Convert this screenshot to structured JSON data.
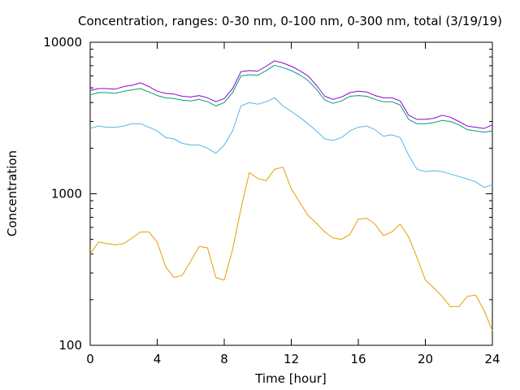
{
  "chart_data": {
    "type": "line",
    "title": "Concentration, ranges: 0-30 nm, 0-100 nm, 0-300 nm, total (3/19/19)",
    "xlabel": "Time [hour]",
    "ylabel": "Concentration",
    "xlim": [
      0,
      24
    ],
    "ylim": [
      100,
      10000
    ],
    "yscale": "log",
    "grid": false,
    "legend": "none",
    "x_ticks": [
      "0",
      "4",
      "8",
      "12",
      "16",
      "20",
      "24"
    ],
    "y_ticks": [
      "100",
      "1000",
      "10000"
    ],
    "x": [
      0,
      0.5,
      1,
      1.5,
      2,
      2.5,
      3,
      3.5,
      4,
      4.5,
      5,
      5.5,
      6,
      6.5,
      7,
      7.5,
      8,
      8.5,
      9,
      9.5,
      10,
      10.5,
      11,
      11.5,
      12,
      12.5,
      13,
      13.5,
      14,
      14.5,
      15,
      15.5,
      16,
      16.5,
      17,
      17.5,
      18,
      18.5,
      19,
      19.5,
      20,
      20.5,
      21,
      21.5,
      22,
      22.5,
      23,
      23.5,
      24
    ],
    "series": [
      {
        "color": "#e69f00",
        "values": [
          400,
          480,
          470,
          460,
          470,
          510,
          560,
          560,
          480,
          330,
          280,
          290,
          360,
          450,
          440,
          280,
          270,
          430,
          800,
          1380,
          1260,
          1220,
          1450,
          1500,
          1080,
          880,
          720,
          640,
          560,
          510,
          500,
          540,
          680,
          690,
          630,
          530,
          560,
          630,
          520,
          380,
          270,
          240,
          210,
          180,
          180,
          210,
          215,
          170,
          125
        ]
      },
      {
        "color": "#56b4e9",
        "values": [
          2700,
          2800,
          2750,
          2750,
          2800,
          2900,
          2900,
          2750,
          2600,
          2350,
          2300,
          2150,
          2100,
          2100,
          2000,
          1850,
          2100,
          2600,
          3800,
          4000,
          3900,
          4050,
          4300,
          3800,
          3500,
          3200,
          2900,
          2600,
          2300,
          2250,
          2350,
          2600,
          2750,
          2800,
          2650,
          2400,
          2450,
          2350,
          1800,
          1450,
          1400,
          1420,
          1400,
          1350,
          1300,
          1250,
          1200,
          1100,
          1150
        ]
      },
      {
        "color": "#009e73",
        "values": [
          4500,
          4650,
          4650,
          4600,
          4750,
          4850,
          4950,
          4700,
          4450,
          4300,
          4250,
          4150,
          4100,
          4200,
          4050,
          3800,
          4000,
          4650,
          6000,
          6100,
          6050,
          6500,
          7050,
          6800,
          6500,
          6100,
          5600,
          4900,
          4150,
          3950,
          4100,
          4400,
          4450,
          4400,
          4200,
          4050,
          4050,
          3850,
          3100,
          2900,
          2900,
          2950,
          3050,
          3000,
          2850,
          2650,
          2600,
          2550,
          2600
        ]
      },
      {
        "color": "#9400d3",
        "values": [
          4800,
          4950,
          4950,
          4900,
          5100,
          5200,
          5400,
          5100,
          4750,
          4600,
          4550,
          4400,
          4350,
          4450,
          4300,
          4050,
          4250,
          4950,
          6400,
          6500,
          6450,
          6950,
          7550,
          7300,
          6950,
          6500,
          6000,
          5200,
          4400,
          4200,
          4350,
          4650,
          4750,
          4700,
          4450,
          4300,
          4300,
          4100,
          3300,
          3100,
          3100,
          3150,
          3300,
          3200,
          3000,
          2800,
          2750,
          2700,
          2850
        ]
      }
    ]
  }
}
